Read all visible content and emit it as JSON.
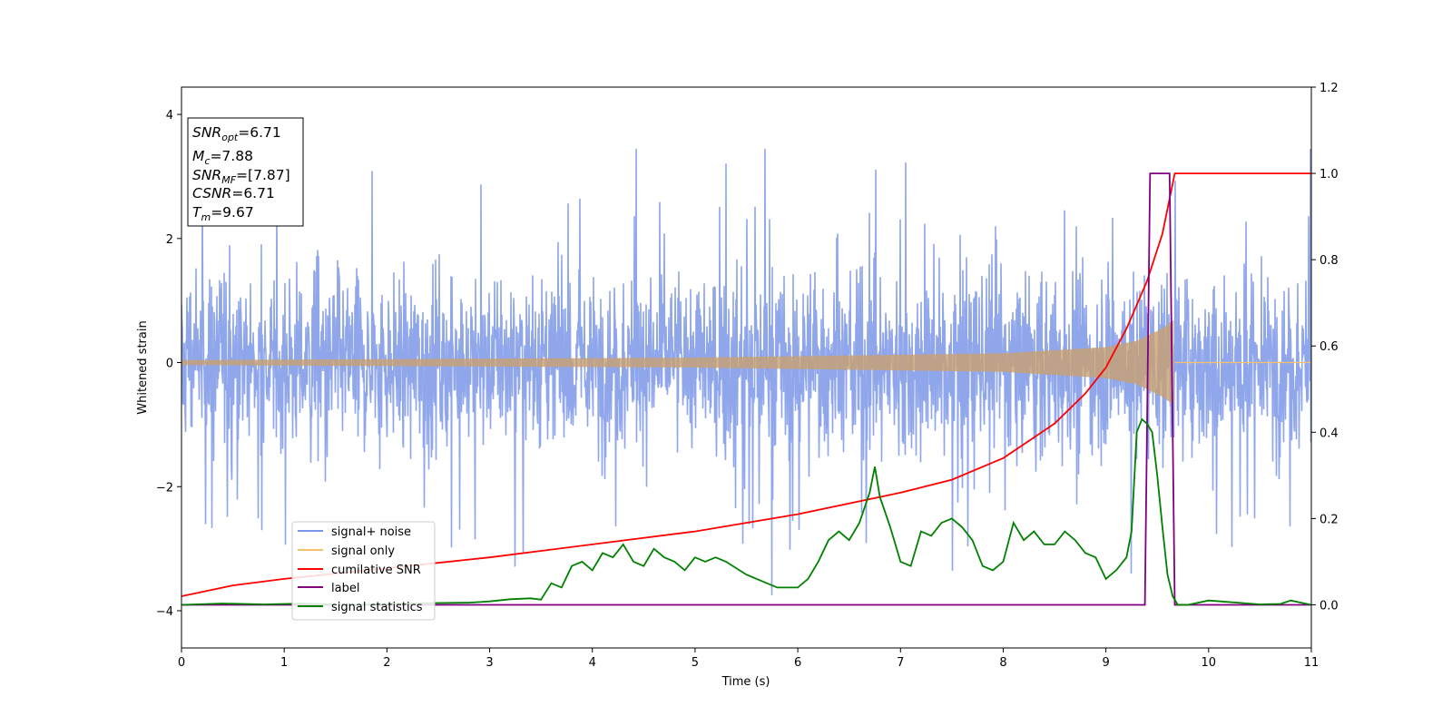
{
  "chart_data": {
    "type": "line",
    "xlabel": "Time (s)",
    "ylabel": "Whitened strain",
    "xlim": [
      0,
      11
    ],
    "ylim_left": [
      -4.6,
      4.44
    ],
    "ylim_right": [
      -0.1,
      1.2
    ],
    "xticks": [
      "0",
      "1",
      "2",
      "3",
      "4",
      "5",
      "6",
      "7",
      "8",
      "9",
      "10",
      "11"
    ],
    "yticks_left": [
      "−4",
      "−2",
      "0",
      "2",
      "4"
    ],
    "yticks_right": [
      "0.0",
      "0.2",
      "0.4",
      "0.6",
      "0.8",
      "1.0",
      "1.2"
    ],
    "colors": {
      "noise": "#7b96e8",
      "signal": "#f5c26b",
      "cumulative": "#ff0000",
      "label": "#800080",
      "stats": "#008000"
    },
    "annotation": {
      "snr_opt": "=6.71",
      "mc": "=7.88",
      "snr_mf": "=[7.87]",
      "csnr": "=6.71",
      "tm": "=9.67"
    },
    "legend": {
      "position": "lower-left",
      "entries": [
        "signal+ noise",
        "signal only",
        "cumilative SNR",
        "label",
        "signal statistics"
      ]
    },
    "series": [
      {
        "name": "signal+ noise",
        "axis": "left",
        "note_visual": "dense noise, amplitude roughly ±2.5 with spikes to ±4"
      },
      {
        "name": "signal only",
        "axis": "left",
        "envelope": {
          "x": [
            0,
            5,
            8,
            9,
            9.3,
            9.55,
            9.67
          ],
          "amp": [
            0.04,
            0.08,
            0.15,
            0.25,
            0.35,
            0.55,
            0.7
          ]
        }
      },
      {
        "name": "cumilative SNR",
        "axis": "right",
        "x": [
          0,
          0.5,
          1,
          2,
          3,
          4,
          5,
          6,
          7,
          7.5,
          8,
          8.5,
          8.8,
          9,
          9.2,
          9.4,
          9.55,
          9.67,
          11
        ],
        "y": [
          0.02,
          0.045,
          0.06,
          0.085,
          0.11,
          0.14,
          0.17,
          0.21,
          0.26,
          0.29,
          0.34,
          0.42,
          0.49,
          0.55,
          0.64,
          0.75,
          0.86,
          1.0,
          1.0
        ]
      },
      {
        "name": "label",
        "axis": "right",
        "x": [
          0,
          9.38,
          9.43,
          9.62,
          9.67,
          11
        ],
        "y": [
          0,
          0,
          1,
          1,
          0,
          0
        ]
      },
      {
        "name": "signal statistics",
        "axis": "right",
        "x": [
          0,
          0.4,
          0.8,
          1.2,
          1.6,
          2.0,
          2.4,
          2.8,
          3.0,
          3.2,
          3.4,
          3.5,
          3.6,
          3.7,
          3.8,
          3.9,
          4.0,
          4.1,
          4.2,
          4.3,
          4.4,
          4.5,
          4.6,
          4.7,
          4.8,
          4.9,
          5.0,
          5.1,
          5.2,
          5.3,
          5.5,
          5.6,
          5.8,
          6.0,
          6.1,
          6.2,
          6.3,
          6.4,
          6.5,
          6.6,
          6.7,
          6.75,
          6.8,
          6.9,
          7.0,
          7.1,
          7.2,
          7.3,
          7.4,
          7.5,
          7.6,
          7.7,
          7.8,
          7.9,
          8.0,
          8.1,
          8.2,
          8.3,
          8.4,
          8.5,
          8.6,
          8.7,
          8.8,
          8.9,
          9.0,
          9.1,
          9.2,
          9.25,
          9.3,
          9.35,
          9.4,
          9.45,
          9.5,
          9.55,
          9.6,
          9.65,
          9.7,
          9.8,
          10.0,
          10.5,
          10.7,
          10.8,
          11.0
        ],
        "y": [
          0.0,
          0.003,
          0.001,
          0.003,
          0.0,
          0.002,
          0.004,
          0.005,
          0.008,
          0.013,
          0.015,
          0.012,
          0.05,
          0.04,
          0.09,
          0.1,
          0.08,
          0.12,
          0.11,
          0.14,
          0.1,
          0.09,
          0.13,
          0.11,
          0.1,
          0.08,
          0.11,
          0.1,
          0.11,
          0.1,
          0.07,
          0.06,
          0.04,
          0.04,
          0.06,
          0.1,
          0.15,
          0.17,
          0.15,
          0.19,
          0.26,
          0.32,
          0.25,
          0.18,
          0.1,
          0.09,
          0.17,
          0.16,
          0.19,
          0.2,
          0.18,
          0.15,
          0.09,
          0.08,
          0.1,
          0.19,
          0.15,
          0.17,
          0.14,
          0.14,
          0.17,
          0.15,
          0.12,
          0.11,
          0.06,
          0.08,
          0.11,
          0.17,
          0.4,
          0.43,
          0.42,
          0.4,
          0.3,
          0.18,
          0.07,
          0.02,
          0.0,
          0.0,
          0.01,
          0.001,
          0.002,
          0.01,
          0.0
        ]
      }
    ]
  }
}
